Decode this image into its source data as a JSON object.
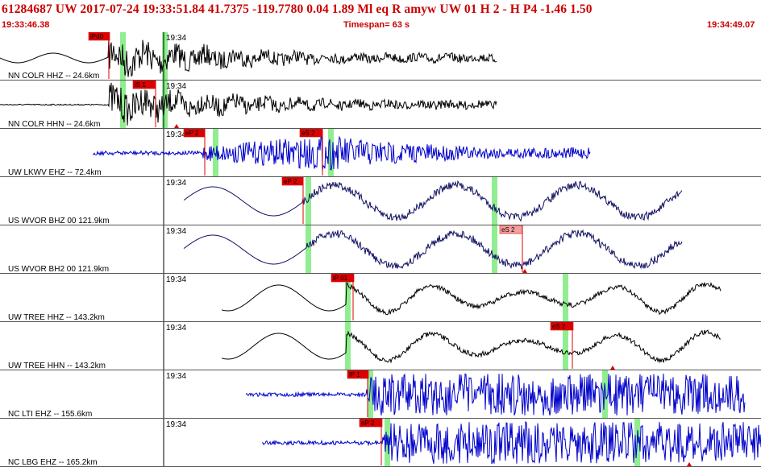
{
  "header": {
    "title": "61284687 UW 2017-07-24 19:33:51.84   41.7375 -119.7780   0.04  1.89 Ml   eq   R amyw      UW 01  H   2  -  H P4   -1.46  1.50",
    "start_time": "19:33:46.38",
    "timespan": "Timespan=  63 s",
    "end_time": "19:34:49.07"
  },
  "colors": {
    "header_text": "#cc0000",
    "pick": "#dd0000",
    "pick_faded": "#f4a0a0",
    "window": "#90ee90",
    "trace_black": "#000000",
    "trace_blue": "#0000cc",
    "trace_navy": "#101060",
    "separator": "#555555"
  },
  "minute_label": "19:34",
  "traces": [
    {
      "label": "NN COLR HHZ -- 24.6km",
      "color": "black",
      "picks": [
        {
          "text": "iPd0",
          "faded": false
        }
      ]
    },
    {
      "label": "NN COLR HHN -- 24.6km",
      "color": "black",
      "picks": [
        {
          "text": "iS 1",
          "faded": false
        }
      ]
    },
    {
      "label": "UW LKWV EHZ -- 72.4km",
      "color": "blue",
      "picks": [
        {
          "text": "eP 2",
          "faded": false
        },
        {
          "text": "eS 2",
          "faded": false
        }
      ]
    },
    {
      "label": "US WVOR BHZ 00 121.9km",
      "color": "navy",
      "picks": [
        {
          "text": "eP 2",
          "faded": false
        }
      ]
    },
    {
      "label": "US WVOR BH2 00 121.9km",
      "color": "navy",
      "picks": [
        {
          "text": "eS 2",
          "faded": true
        }
      ]
    },
    {
      "label": "UW TREE HHZ -- 143.2km",
      "color": "black",
      "picks": [
        {
          "text": "iP 01",
          "faded": false
        }
      ]
    },
    {
      "label": "UW TREE HHN -- 143.2km",
      "color": "black",
      "picks": [
        {
          "text": "eS 2",
          "faded": false
        }
      ]
    },
    {
      "label": "NC LTI EHZ -- 155.6km",
      "color": "blue",
      "picks": [
        {
          "text": "iP 1",
          "faded": false
        }
      ]
    },
    {
      "label": "NC LBG EHZ -- 165.2km",
      "color": "blue",
      "picks": [
        {
          "text": "eP 2",
          "faded": false
        }
      ]
    }
  ]
}
